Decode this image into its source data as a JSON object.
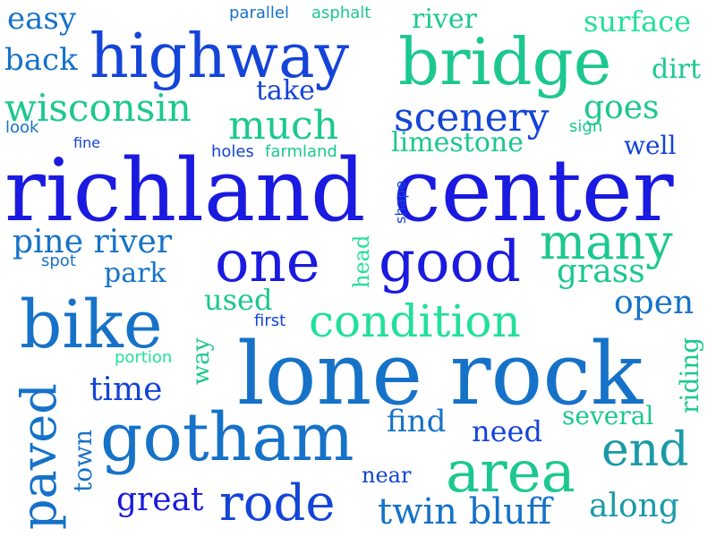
{
  "palette": {
    "deep_blue": "#1a1ae0",
    "royal_blue": "#1444d8",
    "azure": "#1672c8",
    "teal": "#1a9aa8",
    "sea_green": "#1cc890",
    "mint": "#22e09a"
  },
  "words": [
    {
      "text": "richland center",
      "color": "#1a1ae0"
    },
    {
      "text": "lone rock",
      "color": "#1672c8"
    },
    {
      "text": "highway",
      "color": "#1444d8"
    },
    {
      "text": "bridge",
      "color": "#1cc890"
    },
    {
      "text": "bike",
      "color": "#1672c8"
    },
    {
      "text": "gotham",
      "color": "#1672c8"
    },
    {
      "text": "one",
      "color": "#1a1ae0"
    },
    {
      "text": "good",
      "color": "#1a1ae0"
    },
    {
      "text": "many",
      "color": "#1cc890"
    },
    {
      "text": "area",
      "color": "#1cc890"
    },
    {
      "text": "rode",
      "color": "#1444d8"
    },
    {
      "text": "paved",
      "color": "#1672c8"
    },
    {
      "text": "condition",
      "color": "#22e09a"
    },
    {
      "text": "end",
      "color": "#1a9aa8"
    },
    {
      "text": "scenery",
      "color": "#1444d8"
    },
    {
      "text": "much",
      "color": "#1cc890"
    },
    {
      "text": "wisconsin",
      "color": "#1cc890"
    },
    {
      "text": "twin bluff",
      "color": "#1672c8"
    },
    {
      "text": "pine river",
      "color": "#1672c8"
    },
    {
      "text": "great",
      "color": "#1a1ae0"
    },
    {
      "text": "along",
      "color": "#1a9aa8"
    },
    {
      "text": "surface",
      "color": "#22e09a"
    },
    {
      "text": "goes",
      "color": "#1cc890"
    },
    {
      "text": "back",
      "color": "#1672c8"
    },
    {
      "text": "easy",
      "color": "#1672c8"
    },
    {
      "text": "grass",
      "color": "#1cc890"
    },
    {
      "text": "open",
      "color": "#1672c8"
    },
    {
      "text": "time",
      "color": "#1444d8"
    },
    {
      "text": "find",
      "color": "#1672c8"
    },
    {
      "text": "limestone",
      "color": "#1cc890"
    },
    {
      "text": "park",
      "color": "#1672c8"
    },
    {
      "text": "used",
      "color": "#1cc890"
    },
    {
      "text": "riding",
      "color": "#1cc890"
    },
    {
      "text": "need",
      "color": "#1444d8"
    },
    {
      "text": "river",
      "color": "#1cc890"
    },
    {
      "text": "take",
      "color": "#1444d8"
    },
    {
      "text": "dirt",
      "color": "#1cc890"
    },
    {
      "text": "well",
      "color": "#1444d8"
    },
    {
      "text": "several",
      "color": "#1cc890"
    },
    {
      "text": "town",
      "color": "#1672c8"
    },
    {
      "text": "near",
      "color": "#1444d8"
    },
    {
      "text": "way",
      "color": "#1cc890"
    },
    {
      "text": "parallel",
      "color": "#1672c8"
    },
    {
      "text": "asphalt",
      "color": "#1cc890"
    },
    {
      "text": "head",
      "color": "#22e09a"
    },
    {
      "text": "shape",
      "color": "#1444d8"
    },
    {
      "text": "look",
      "color": "#1672c8"
    },
    {
      "text": "fine",
      "color": "#1444d8"
    },
    {
      "text": "holes",
      "color": "#1444d8"
    },
    {
      "text": "farmland",
      "color": "#1cc890"
    },
    {
      "text": "sign",
      "color": "#1cc890"
    },
    {
      "text": "spot",
      "color": "#1672c8"
    },
    {
      "text": "first",
      "color": "#1444d8"
    },
    {
      "text": "portion",
      "color": "#22e09a"
    }
  ]
}
